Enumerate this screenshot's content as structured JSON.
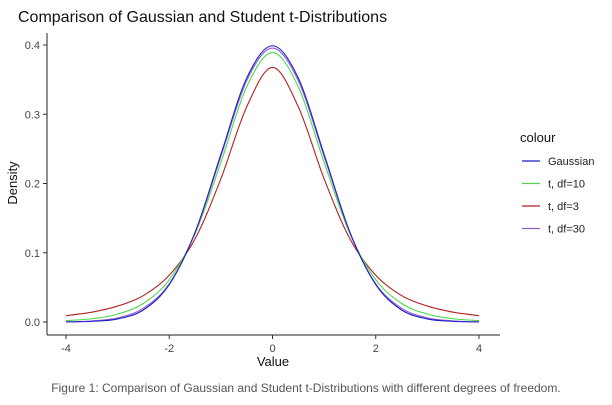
{
  "chart_data": {
    "type": "line",
    "title": "Comparison of Gaussian and Student t-Distributions",
    "xlabel": "Value",
    "ylabel": "Density",
    "xlim": [
      -4,
      4
    ],
    "ylim": [
      0,
      0.4
    ],
    "x_ticks": [
      -4,
      -2,
      0,
      2,
      4
    ],
    "y_ticks": [
      0.0,
      0.1,
      0.2,
      0.3,
      0.4
    ],
    "x_tick_labels": [
      "-4",
      "-2",
      "0",
      "2",
      "4"
    ],
    "y_tick_labels": [
      "0.0",
      "0.1",
      "0.2",
      "0.3",
      "0.4"
    ],
    "grid": false,
    "legend": {
      "title": "colour",
      "position": "right"
    },
    "x": [
      -4.0,
      -3.5,
      -3.0,
      -2.5,
      -2.0,
      -1.5,
      -1.0,
      -0.5,
      0.0,
      0.5,
      1.0,
      1.5,
      2.0,
      2.5,
      3.0,
      3.5,
      4.0
    ],
    "series": [
      {
        "name": "Gaussian",
        "color": "#1f1fc8",
        "values": [
          0.0001,
          0.0009,
          0.0044,
          0.0175,
          0.054,
          0.1295,
          0.242,
          0.3521,
          0.3989,
          0.3521,
          0.242,
          0.1295,
          0.054,
          0.0175,
          0.0044,
          0.0009,
          0.0001
        ]
      },
      {
        "name": "t, df=10",
        "color": "#4fd84f",
        "values": [
          0.002,
          0.0047,
          0.0114,
          0.0269,
          0.0611,
          0.1274,
          0.2304,
          0.3397,
          0.3891,
          0.3397,
          0.2304,
          0.1274,
          0.0611,
          0.0269,
          0.0114,
          0.0047,
          0.002
        ]
      },
      {
        "name": "t, df=3",
        "color": "#b22222",
        "values": [
          0.0092,
          0.0142,
          0.023,
          0.0382,
          0.0675,
          0.12,
          0.2067,
          0.3107,
          0.3676,
          0.3107,
          0.2067,
          0.12,
          0.0675,
          0.0382,
          0.023,
          0.0142,
          0.0092
        ]
      },
      {
        "name": "t, df=30",
        "color": "#8f5fcf",
        "values": [
          0.0003,
          0.0016,
          0.006,
          0.0199,
          0.0552,
          0.1288,
          0.2391,
          0.3483,
          0.3956,
          0.3483,
          0.2391,
          0.1288,
          0.0552,
          0.0199,
          0.006,
          0.0016,
          0.0003
        ]
      }
    ]
  },
  "caption": "Figure 1: Comparison of Gaussian and Student t-Distributions with different degrees of freedom."
}
